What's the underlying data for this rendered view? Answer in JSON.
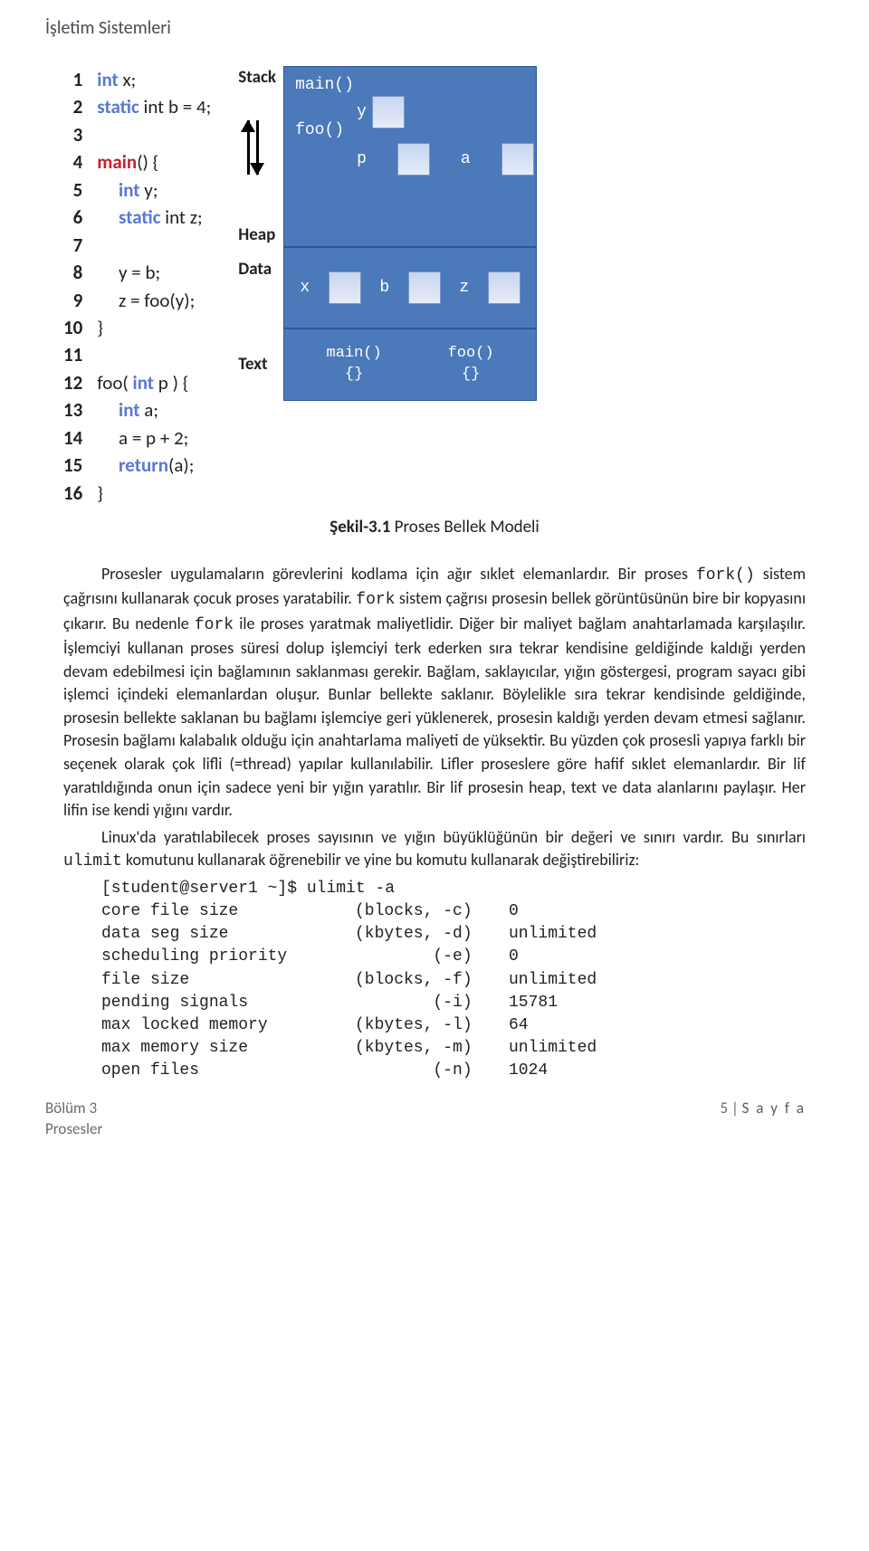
{
  "header": {
    "title": "İşletim Sistemleri"
  },
  "code": {
    "lines": [
      {
        "n": "1",
        "pre": "",
        "kw": "int",
        "kwcls": "kw-blue",
        "post": " x;"
      },
      {
        "n": "2",
        "pre": "",
        "kw": "static",
        "kwcls": "kw-blue",
        "post": " int b = 4;"
      },
      {
        "n": "3",
        "pre": "",
        "kw": "",
        "kwcls": "",
        "post": ""
      },
      {
        "n": "4",
        "pre": "",
        "kw": "main",
        "kwcls": "kw-red",
        "post": "() {"
      },
      {
        "n": "5",
        "pre": "     ",
        "kw": "int",
        "kwcls": "kw-blue",
        "post": " y;"
      },
      {
        "n": "6",
        "pre": "     ",
        "kw": "static",
        "kwcls": "kw-blue",
        "post": " int z;"
      },
      {
        "n": "7",
        "pre": "",
        "kw": "",
        "kwcls": "",
        "post": ""
      },
      {
        "n": "8",
        "pre": "     y = b;",
        "kw": "",
        "kwcls": "",
        "post": ""
      },
      {
        "n": "9",
        "pre": "     z = foo(y);",
        "kw": "",
        "kwcls": "",
        "post": ""
      },
      {
        "n": "10",
        "pre": "}",
        "kw": "",
        "kwcls": "",
        "post": ""
      },
      {
        "n": "11",
        "pre": "",
        "kw": "",
        "kwcls": "",
        "post": ""
      },
      {
        "n": "12",
        "pre": "foo( ",
        "kw": "int",
        "kwcls": "kw-blue",
        "post": " p ) {"
      },
      {
        "n": "13",
        "pre": "     ",
        "kw": "int",
        "kwcls": "kw-blue",
        "post": " a;"
      },
      {
        "n": "14",
        "pre": "     a = p + 2;",
        "kw": "",
        "kwcls": "",
        "post": ""
      },
      {
        "n": "15",
        "pre": "     ",
        "kw": "return",
        "kwcls": "kw-blue",
        "post": "(a);"
      },
      {
        "n": "16",
        "pre": "}",
        "kw": "",
        "kwcls": "",
        "post": ""
      }
    ]
  },
  "diagram": {
    "labels": {
      "stack": "Stack",
      "heap": "Heap",
      "data": "Data",
      "text": "Text"
    },
    "stack": {
      "main": "main()",
      "y": "y",
      "foo": "foo()",
      "p": "p",
      "a": "a"
    },
    "data": {
      "x": "x",
      "b": "b",
      "z": "z"
    },
    "text": {
      "main": "main()\n{}",
      "foo": "foo()\n{}"
    },
    "colors": {
      "block_bg": "#4b79b9",
      "block_border": "#2b5995",
      "cell_top": "#c7d5f0",
      "cell_bot": "#e6ecf9"
    }
  },
  "caption": {
    "bold": "Şekil-3.1",
    "rest": " Proses Bellek Modeli"
  },
  "para1_a": "Prosesler uygulamaların görevlerini kodlama için ağır sıklet elemanlardır. Bir proses ",
  "para1_fork1": "fork()",
  "para1_b": " sistem çağrısını kullanarak çocuk proses yaratabilir. ",
  "para1_fork2": "fork",
  "para1_c": " sistem çağrısı prosesin bellek görüntüsünün bire bir kopyasını çıkarır. Bu nedenle ",
  "para1_fork3": "fork",
  "para1_d": " ile proses yaratmak maliyetlidir. Diğer bir maliyet bağlam anahtarlamada karşılaşılır. İşlemciyi kullanan proses süresi dolup işlemciyi terk ederken sıra tekrar kendisine geldiğinde kaldığı yerden devam edebilmesi için bağlamının saklanması gerekir. Bağlam, saklayıcılar, yığın göstergesi, program sayacı gibi işlemci içindeki elemanlardan oluşur. Bunlar bellekte saklanır. Böylelikle sıra tekrar kendisinde geldiğinde, prosesin bellekte saklanan bu bağlamı işlemciye geri yüklenerek, prosesin kaldığı yerden devam etmesi sağlanır. Prosesin bağlamı kalabalık olduğu için anahtarlama maliyeti de yüksektir. Bu yüzden çok prosesli yapıya farklı bir seçenek olarak çok lifli (=thread) yapılar kullanılabilir. Lifler proseslere göre hafif sıklet elemanlardır. Bir lif yaratıldığında onun için sadece yeni bir yığın yaratılır. Bir lif prosesin heap, text ve data alanlarını paylaşır. Her lifin ise kendi yığını vardır.",
  "para2_a": "Linux'da yaratılabilecek proses sayısının ve yığın büyüklüğünün bir değeri ve sınırı vardır. Bu sınırları ",
  "para2_ulimit": "ulimit",
  "para2_b": " komutunu kullanarak öğrenebilir ve yine bu komutu kullanarak değiştirebiliriz:",
  "ulimit": {
    "prompt": "[student@server1 ~]$ ulimit -a",
    "rows": [
      {
        "c1": "core file size",
        "c2": "(blocks, -c)",
        "c3": "0"
      },
      {
        "c1": "data seg size",
        "c2": "(kbytes, -d)",
        "c3": "unlimited"
      },
      {
        "c1": "scheduling priority",
        "c2": "        (-e)",
        "c3": "0"
      },
      {
        "c1": "file size",
        "c2": "(blocks, -f)",
        "c3": "unlimited"
      },
      {
        "c1": "pending signals",
        "c2": "        (-i)",
        "c3": "15781"
      },
      {
        "c1": "max locked memory",
        "c2": "(kbytes, -l)",
        "c3": "64"
      },
      {
        "c1": "max memory size",
        "c2": "(kbytes, -m)",
        "c3": "unlimited"
      },
      {
        "c1": "open files",
        "c2": "        (-n)",
        "c3": "1024"
      }
    ]
  },
  "footer": {
    "left1": "Bölüm 3",
    "left2": "Prosesler",
    "right_num": "5",
    "right_sep": " | ",
    "right_word": "S a y f a"
  }
}
